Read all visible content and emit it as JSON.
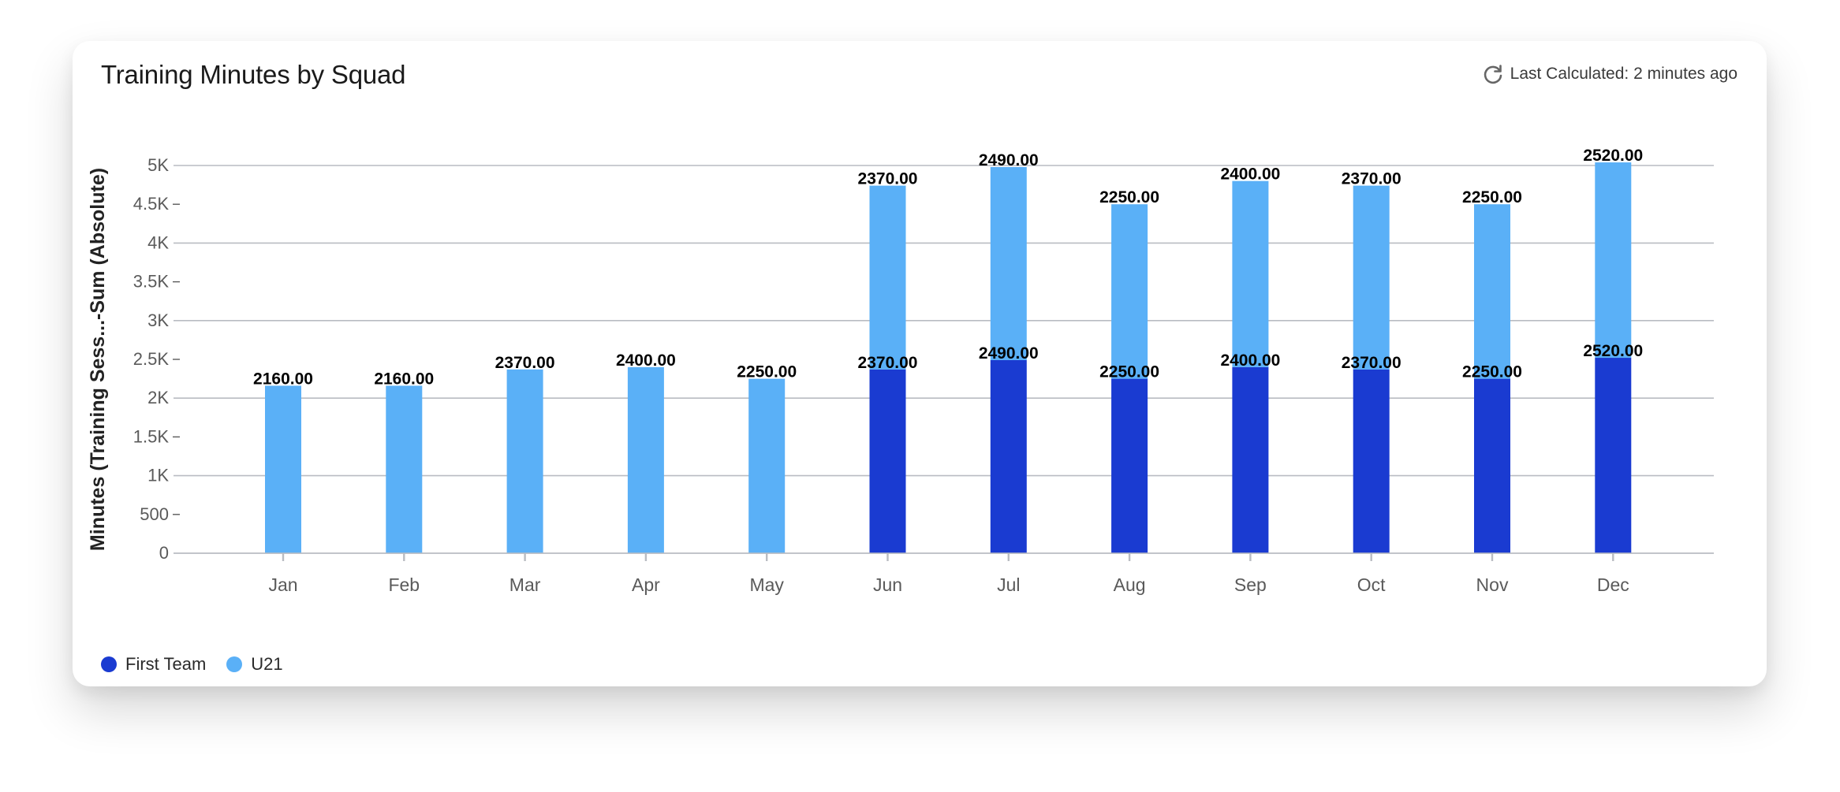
{
  "card": {
    "title": "Training Minutes by Squad",
    "last_calculated": "Last Calculated: 2 minutes ago"
  },
  "colors": {
    "first_team": "#1a3bd1",
    "u21": "#5ab0f7",
    "grid": "#b9bcc2",
    "axis_text": "#5a5a5a"
  },
  "legend": [
    {
      "label": "First Team",
      "color": "#1a3bd1"
    },
    {
      "label": "U21",
      "color": "#5ab0f7"
    }
  ],
  "chart_data": {
    "type": "bar",
    "stacked": true,
    "title": "Training Minutes by Squad",
    "xlabel": "",
    "ylabel": "Minutes (Training Sess...-Sum (Absolute)",
    "ylim": [
      0,
      5000
    ],
    "yticks": [
      {
        "value": 0,
        "label": "0"
      },
      {
        "value": 500,
        "label": "500"
      },
      {
        "value": 1000,
        "label": "1K"
      },
      {
        "value": 1500,
        "label": "1.5K"
      },
      {
        "value": 2000,
        "label": "2K"
      },
      {
        "value": 2500,
        "label": "2.5K"
      },
      {
        "value": 3000,
        "label": "3K"
      },
      {
        "value": 3500,
        "label": "3.5K"
      },
      {
        "value": 4000,
        "label": "4K"
      },
      {
        "value": 4500,
        "label": "4.5K"
      },
      {
        "value": 5000,
        "label": "5K"
      }
    ],
    "grid": true,
    "legend_position": "bottom-left",
    "categories": [
      "Jan",
      "Feb",
      "Mar",
      "Apr",
      "May",
      "Jun",
      "Jul",
      "Aug",
      "Sep",
      "Oct",
      "Nov",
      "Dec"
    ],
    "series": [
      {
        "name": "First Team",
        "color": "#1a3bd1",
        "values": [
          null,
          null,
          null,
          null,
          null,
          2370,
          2490,
          2250,
          2400,
          2370,
          2250,
          2520
        ],
        "labels": [
          "",
          "",
          "",
          "",
          "",
          "2370.00",
          "2490.00",
          "2250.00",
          "2400.00",
          "2370.00",
          "2250.00",
          "2520.00"
        ]
      },
      {
        "name": "U21",
        "color": "#5ab0f7",
        "values": [
          2160,
          2160,
          2370,
          2400,
          2250,
          2370,
          2490,
          2250,
          2400,
          2370,
          2250,
          2520
        ],
        "labels": [
          "2160.00",
          "2160.00",
          "2370.00",
          "2400.00",
          "2250.00",
          "2370.00",
          "2490.00",
          "2250.00",
          "2400.00",
          "2370.00",
          "2250.00",
          "2520.00"
        ]
      }
    ]
  }
}
